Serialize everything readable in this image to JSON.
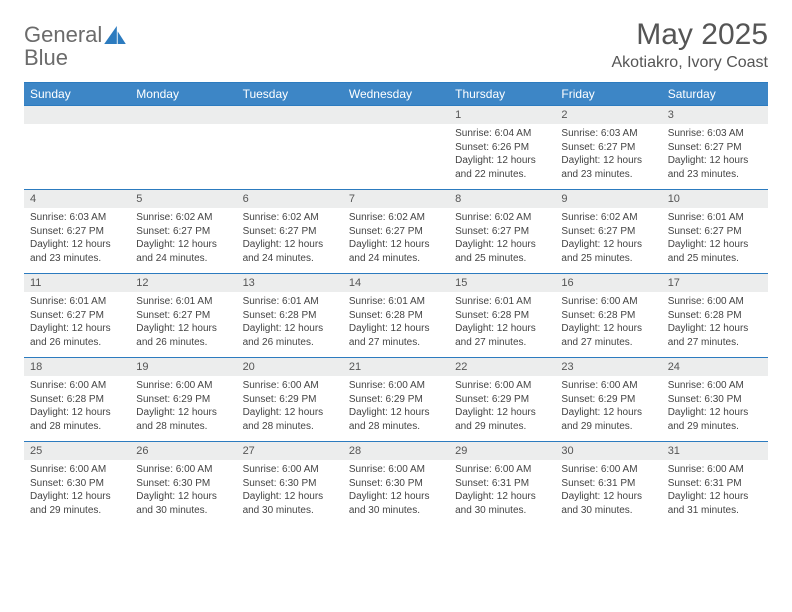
{
  "brand": {
    "word1": "General",
    "word2": "Blue"
  },
  "title": {
    "month": "May 2025",
    "location": "Akotiakro, Ivory Coast"
  },
  "colors": {
    "header_bg": "#3d86c6",
    "header_text": "#ffffff",
    "rule": "#2c7bbf",
    "daynum_bg": "#eceded",
    "text": "#444444",
    "brand_gray": "#6b6b6b",
    "brand_blue": "#2c7bbf"
  },
  "weekdays": [
    "Sunday",
    "Monday",
    "Tuesday",
    "Wednesday",
    "Thursday",
    "Friday",
    "Saturday"
  ],
  "weeks": [
    [
      null,
      null,
      null,
      null,
      {
        "n": "1",
        "sr": "6:04 AM",
        "ss": "6:26 PM",
        "dl": "12 hours and 22 minutes."
      },
      {
        "n": "2",
        "sr": "6:03 AM",
        "ss": "6:27 PM",
        "dl": "12 hours and 23 minutes."
      },
      {
        "n": "3",
        "sr": "6:03 AM",
        "ss": "6:27 PM",
        "dl": "12 hours and 23 minutes."
      }
    ],
    [
      {
        "n": "4",
        "sr": "6:03 AM",
        "ss": "6:27 PM",
        "dl": "12 hours and 23 minutes."
      },
      {
        "n": "5",
        "sr": "6:02 AM",
        "ss": "6:27 PM",
        "dl": "12 hours and 24 minutes."
      },
      {
        "n": "6",
        "sr": "6:02 AM",
        "ss": "6:27 PM",
        "dl": "12 hours and 24 minutes."
      },
      {
        "n": "7",
        "sr": "6:02 AM",
        "ss": "6:27 PM",
        "dl": "12 hours and 24 minutes."
      },
      {
        "n": "8",
        "sr": "6:02 AM",
        "ss": "6:27 PM",
        "dl": "12 hours and 25 minutes."
      },
      {
        "n": "9",
        "sr": "6:02 AM",
        "ss": "6:27 PM",
        "dl": "12 hours and 25 minutes."
      },
      {
        "n": "10",
        "sr": "6:01 AM",
        "ss": "6:27 PM",
        "dl": "12 hours and 25 minutes."
      }
    ],
    [
      {
        "n": "11",
        "sr": "6:01 AM",
        "ss": "6:27 PM",
        "dl": "12 hours and 26 minutes."
      },
      {
        "n": "12",
        "sr": "6:01 AM",
        "ss": "6:27 PM",
        "dl": "12 hours and 26 minutes."
      },
      {
        "n": "13",
        "sr": "6:01 AM",
        "ss": "6:28 PM",
        "dl": "12 hours and 26 minutes."
      },
      {
        "n": "14",
        "sr": "6:01 AM",
        "ss": "6:28 PM",
        "dl": "12 hours and 27 minutes."
      },
      {
        "n": "15",
        "sr": "6:01 AM",
        "ss": "6:28 PM",
        "dl": "12 hours and 27 minutes."
      },
      {
        "n": "16",
        "sr": "6:00 AM",
        "ss": "6:28 PM",
        "dl": "12 hours and 27 minutes."
      },
      {
        "n": "17",
        "sr": "6:00 AM",
        "ss": "6:28 PM",
        "dl": "12 hours and 27 minutes."
      }
    ],
    [
      {
        "n": "18",
        "sr": "6:00 AM",
        "ss": "6:28 PM",
        "dl": "12 hours and 28 minutes."
      },
      {
        "n": "19",
        "sr": "6:00 AM",
        "ss": "6:29 PM",
        "dl": "12 hours and 28 minutes."
      },
      {
        "n": "20",
        "sr": "6:00 AM",
        "ss": "6:29 PM",
        "dl": "12 hours and 28 minutes."
      },
      {
        "n": "21",
        "sr": "6:00 AM",
        "ss": "6:29 PM",
        "dl": "12 hours and 28 minutes."
      },
      {
        "n": "22",
        "sr": "6:00 AM",
        "ss": "6:29 PM",
        "dl": "12 hours and 29 minutes."
      },
      {
        "n": "23",
        "sr": "6:00 AM",
        "ss": "6:29 PM",
        "dl": "12 hours and 29 minutes."
      },
      {
        "n": "24",
        "sr": "6:00 AM",
        "ss": "6:30 PM",
        "dl": "12 hours and 29 minutes."
      }
    ],
    [
      {
        "n": "25",
        "sr": "6:00 AM",
        "ss": "6:30 PM",
        "dl": "12 hours and 29 minutes."
      },
      {
        "n": "26",
        "sr": "6:00 AM",
        "ss": "6:30 PM",
        "dl": "12 hours and 30 minutes."
      },
      {
        "n": "27",
        "sr": "6:00 AM",
        "ss": "6:30 PM",
        "dl": "12 hours and 30 minutes."
      },
      {
        "n": "28",
        "sr": "6:00 AM",
        "ss": "6:30 PM",
        "dl": "12 hours and 30 minutes."
      },
      {
        "n": "29",
        "sr": "6:00 AM",
        "ss": "6:31 PM",
        "dl": "12 hours and 30 minutes."
      },
      {
        "n": "30",
        "sr": "6:00 AM",
        "ss": "6:31 PM",
        "dl": "12 hours and 30 minutes."
      },
      {
        "n": "31",
        "sr": "6:00 AM",
        "ss": "6:31 PM",
        "dl": "12 hours and 31 minutes."
      }
    ]
  ],
  "labels": {
    "sunrise": "Sunrise:",
    "sunset": "Sunset:",
    "daylight": "Daylight:"
  }
}
